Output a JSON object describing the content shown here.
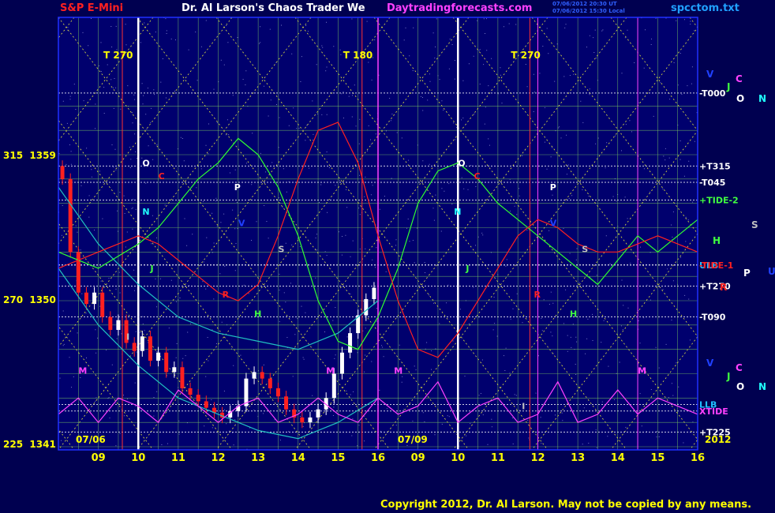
{
  "header": {
    "symbol": "S&P E-Mini",
    "title": "Dr. Al Larson's Chaos Trader We",
    "site": "Daytradingforecasts.com",
    "stamp_line1": "07/06/2012 20:30 UT",
    "stamp_line2": "07/06/2012 15:30 Local",
    "file": "spcctom.txt"
  },
  "footer": {
    "copyright": "Copyright 2012, Dr. Al Larson. May not be copied by any means."
  },
  "colors": {
    "background": "#000050",
    "plot_bg": "#00006e",
    "grid": "#80ff80",
    "candle_up": "#ffffff",
    "candle_down": "#ff2020",
    "text": "#ffff00"
  },
  "chart_data": {
    "type": "line",
    "title": "",
    "xlabel": "",
    "ylabel": "",
    "ylim": [
      1341,
      1363
    ],
    "y_ticks": [
      {
        "label": "315",
        "price": "1359",
        "value": 1359
      },
      {
        "label": "270",
        "price": "1350",
        "value": 1350
      },
      {
        "label": "225",
        "price": "1341",
        "value": 1341
      }
    ],
    "x_ticks": [
      "09",
      "10",
      "11",
      "12",
      "13",
      "14",
      "15",
      "16",
      "09",
      "10",
      "11",
      "12",
      "13",
      "14",
      "15",
      "16"
    ],
    "date_labels": [
      {
        "label": "07/06",
        "hour": 8.2
      },
      {
        "label": "07/09",
        "hour": 16.8
      }
    ],
    "year": "2012",
    "x_range_hours": [
      8,
      24
    ],
    "day_break_hour": 16,
    "grid": true,
    "series": [
      {
        "name": "S&P E-Mini",
        "kind": "candles",
        "x": [
          8.1,
          8.3,
          8.5,
          8.7,
          8.9,
          9.1,
          9.3,
          9.5,
          9.7,
          9.9,
          10.1,
          10.3,
          10.5,
          10.7,
          10.9,
          11.1,
          11.3,
          11.5,
          11.7,
          11.9,
          12.1,
          12.3,
          12.5,
          12.7,
          12.9,
          13.1,
          13.3,
          13.5,
          13.7,
          13.9,
          14.1,
          14.3,
          14.5,
          14.7,
          14.9,
          15.1,
          15.3,
          15.5,
          15.7,
          15.9
        ],
        "close": [
          1357.5,
          1353,
          1350.5,
          1349.8,
          1350.5,
          1349,
          1348.2,
          1348.8,
          1347.4,
          1346.9,
          1347.8,
          1346.3,
          1346.8,
          1345.6,
          1345.9,
          1344.6,
          1344.2,
          1343.8,
          1343.4,
          1343.1,
          1342.8,
          1343.2,
          1343.5,
          1345.2,
          1345.6,
          1345.2,
          1344.6,
          1344.1,
          1343.3,
          1342.8,
          1342.5,
          1342.8,
          1343.3,
          1344.0,
          1345.5,
          1346.8,
          1348.0,
          1349.1,
          1350.1,
          1350.8
        ]
      },
      {
        "name": "upper envelope",
        "kind": "line",
        "x": [
          8,
          9,
          10,
          11,
          12,
          13,
          14,
          15,
          16
        ],
        "y": [
          1357,
          1353.5,
          1351,
          1349,
          1348,
          1347.5,
          1347,
          1348,
          1350
        ]
      },
      {
        "name": "lower envelope",
        "kind": "line",
        "x": [
          8,
          9,
          10,
          11,
          12,
          13,
          14,
          15,
          16
        ],
        "y": [
          1352,
          1348.5,
          1346,
          1344,
          1343,
          1342,
          1341.5,
          1342.5,
          1344
        ]
      },
      {
        "name": "TIDE-2",
        "kind": "line",
        "x": [
          8,
          9,
          10,
          10.5,
          11,
          11.5,
          12,
          12.5,
          13,
          13.5,
          14,
          14.5,
          15,
          15.5,
          16,
          16.5,
          17,
          17.5,
          18,
          18.5,
          19,
          19.5,
          20,
          20.5,
          21,
          21.5,
          22,
          22.5,
          23,
          23.5,
          24
        ],
        "y": [
          1353,
          1352,
          1353.5,
          1354.5,
          1356,
          1357.5,
          1358.5,
          1360,
          1359,
          1357,
          1354,
          1350,
          1347.5,
          1347,
          1349,
          1352,
          1356,
          1358,
          1358.5,
          1357.5,
          1356,
          1355,
          1354,
          1353,
          1352,
          1351,
          1352.5,
          1354,
          1353,
          1354,
          1355
        ]
      },
      {
        "name": "TIDE-1",
        "kind": "line",
        "x": [
          8,
          9,
          10,
          10.5,
          11,
          11.5,
          12,
          12.5,
          13,
          13.5,
          14,
          14.5,
          15,
          15.5,
          16,
          16.5,
          17,
          17.5,
          18,
          18.5,
          19,
          19.5,
          20,
          20.5,
          21,
          21.5,
          22,
          22.5,
          23,
          23.5,
          24
        ],
        "y": [
          1352,
          1353,
          1354,
          1353.5,
          1352.5,
          1351.5,
          1350.5,
          1350,
          1351,
          1354,
          1357.5,
          1360.5,
          1361,
          1358.5,
          1354,
          1350,
          1347,
          1346.5,
          1348,
          1350,
          1352,
          1354,
          1355,
          1354.5,
          1353.5,
          1353,
          1353,
          1353.5,
          1354,
          1353.5,
          1353
        ]
      },
      {
        "name": "XTIDE",
        "kind": "line",
        "x": [
          8,
          8.5,
          9,
          9.5,
          10,
          10.5,
          11,
          11.5,
          12,
          12.5,
          13,
          13.5,
          14,
          14.5,
          15,
          15.5,
          16,
          16.5,
          17,
          17.5,
          18,
          18.5,
          19,
          19.5,
          20,
          20.5,
          21,
          21.5,
          22,
          22.5,
          23,
          23.5,
          24
        ],
        "y": [
          1343,
          1344,
          1342.5,
          1344,
          1343.5,
          1342.5,
          1344.5,
          1343.5,
          1342.5,
          1343.5,
          1344,
          1342.5,
          1343,
          1344,
          1343,
          1342.5,
          1344,
          1343,
          1343.5,
          1345,
          1342.5,
          1343.5,
          1344,
          1342.5,
          1343,
          1345,
          1342.5,
          1343,
          1344.5,
          1343,
          1344,
          1343.5,
          1343
        ]
      }
    ],
    "right_labels": [
      {
        "text": "-T000",
        "value": 1362.8,
        "color": "#ffffff"
      },
      {
        "text": "+T315",
        "value": 1358.3,
        "color": "#ffffff"
      },
      {
        "text": "-T045",
        "value": 1357.3,
        "color": "#ffffff"
      },
      {
        "text": "+TIDE-2",
        "value": 1356.2,
        "color": "#40ff40"
      },
      {
        "text": "ULB",
        "value": 1352.2,
        "color": "#20c0ff"
      },
      {
        "text": "-TIDE-1",
        "value": 1352.2,
        "color": "#ff2020"
      },
      {
        "text": "+T270",
        "value": 1350.9,
        "color": "#ffffff"
      },
      {
        "text": "-T090",
        "value": 1349.0,
        "color": "#ffffff"
      },
      {
        "text": "LLB",
        "value": 1343.6,
        "color": "#20c0ff"
      },
      {
        "text": "XTIDE",
        "value": 1343.2,
        "color": "#ff40ff"
      },
      {
        "text": "+T225",
        "value": 1341.9,
        "color": "#ffffff"
      }
    ],
    "t_labels": [
      {
        "text": "T",
        "num": "270",
        "hour": 9.6
      },
      {
        "text": "T",
        "num": "180",
        "hour": 15.6
      },
      {
        "text": "T",
        "num": "270",
        "hour": 19.8
      }
    ],
    "letter_markers": [
      {
        "text": "O",
        "hour": 10.1,
        "value": 1358.3,
        "color": "#ffffff"
      },
      {
        "text": "C",
        "hour": 10.5,
        "value": 1357.5,
        "color": "#ff2020"
      },
      {
        "text": "N",
        "hour": 10.1,
        "value": 1355.3,
        "color": "#20ffff"
      },
      {
        "text": "J",
        "hour": 10.3,
        "value": 1351.8,
        "color": "#40ff40"
      },
      {
        "text": "P",
        "hour": 12.4,
        "value": 1356.8,
        "color": "#ffffff"
      },
      {
        "text": "V",
        "hour": 12.5,
        "value": 1354.6,
        "color": "#2040ff"
      },
      {
        "text": "S",
        "hour": 13.5,
        "value": 1353.0,
        "color": "#c0c0c0"
      },
      {
        "text": "R",
        "hour": 12.1,
        "value": 1350.2,
        "color": "#ff2020"
      },
      {
        "text": "H",
        "hour": 12.9,
        "value": 1349.0,
        "color": "#40ff40"
      },
      {
        "text": "M",
        "hour": 8.5,
        "value": 1345.5,
        "color": "#ff40ff"
      },
      {
        "text": "M",
        "hour": 14.7,
        "value": 1345.5,
        "color": "#ff40ff"
      },
      {
        "text": "M",
        "hour": 16.4,
        "value": 1345.5,
        "color": "#ff40ff"
      },
      {
        "text": "O",
        "hour": 18.0,
        "value": 1358.3,
        "color": "#ffffff"
      },
      {
        "text": "C",
        "hour": 18.4,
        "value": 1357.5,
        "color": "#ff2020"
      },
      {
        "text": "N",
        "hour": 17.9,
        "value": 1355.3,
        "color": "#20ffff"
      },
      {
        "text": "J",
        "hour": 18.2,
        "value": 1351.8,
        "color": "#40ff40"
      },
      {
        "text": "P",
        "hour": 20.3,
        "value": 1356.8,
        "color": "#ffffff"
      },
      {
        "text": "V",
        "hour": 20.3,
        "value": 1354.6,
        "color": "#2040ff"
      },
      {
        "text": "S",
        "hour": 21.1,
        "value": 1353.0,
        "color": "#c0c0c0"
      },
      {
        "text": "R",
        "hour": 19.9,
        "value": 1350.2,
        "color": "#ff2020"
      },
      {
        "text": "H",
        "hour": 20.8,
        "value": 1349.0,
        "color": "#40ff40"
      },
      {
        "text": "M",
        "hour": 22.5,
        "value": 1345.5,
        "color": "#ff40ff"
      },
      {
        "text": "I",
        "hour": 9.7,
        "value": 1347.6,
        "color": "#c0c0c0"
      },
      {
        "text": "I",
        "hour": 19.6,
        "value": 1343.3,
        "color": "#c0c0c0"
      }
    ],
    "side_letters": [
      {
        "text": "V",
        "color": "#2040ff"
      },
      {
        "text": "C",
        "color": "#ff40ff"
      },
      {
        "text": "J",
        "color": "#40ff40"
      },
      {
        "text": "O",
        "color": "#ffffff"
      },
      {
        "text": "N",
        "color": "#20ffff"
      },
      {
        "text": "S",
        "color": "#c0c0c0"
      },
      {
        "text": "H",
        "color": "#40ff40"
      },
      {
        "text": "P",
        "color": "#ffffff"
      },
      {
        "text": "U",
        "color": "#2040ff"
      },
      {
        "text": "R",
        "color": "#ff2020"
      },
      {
        "text": "V",
        "color": "#2040ff"
      },
      {
        "text": "C",
        "color": "#ff40ff"
      },
      {
        "text": "J",
        "color": "#40ff40"
      },
      {
        "text": "O",
        "color": "#ffffff"
      },
      {
        "text": "N",
        "color": "#20ffff"
      }
    ]
  }
}
